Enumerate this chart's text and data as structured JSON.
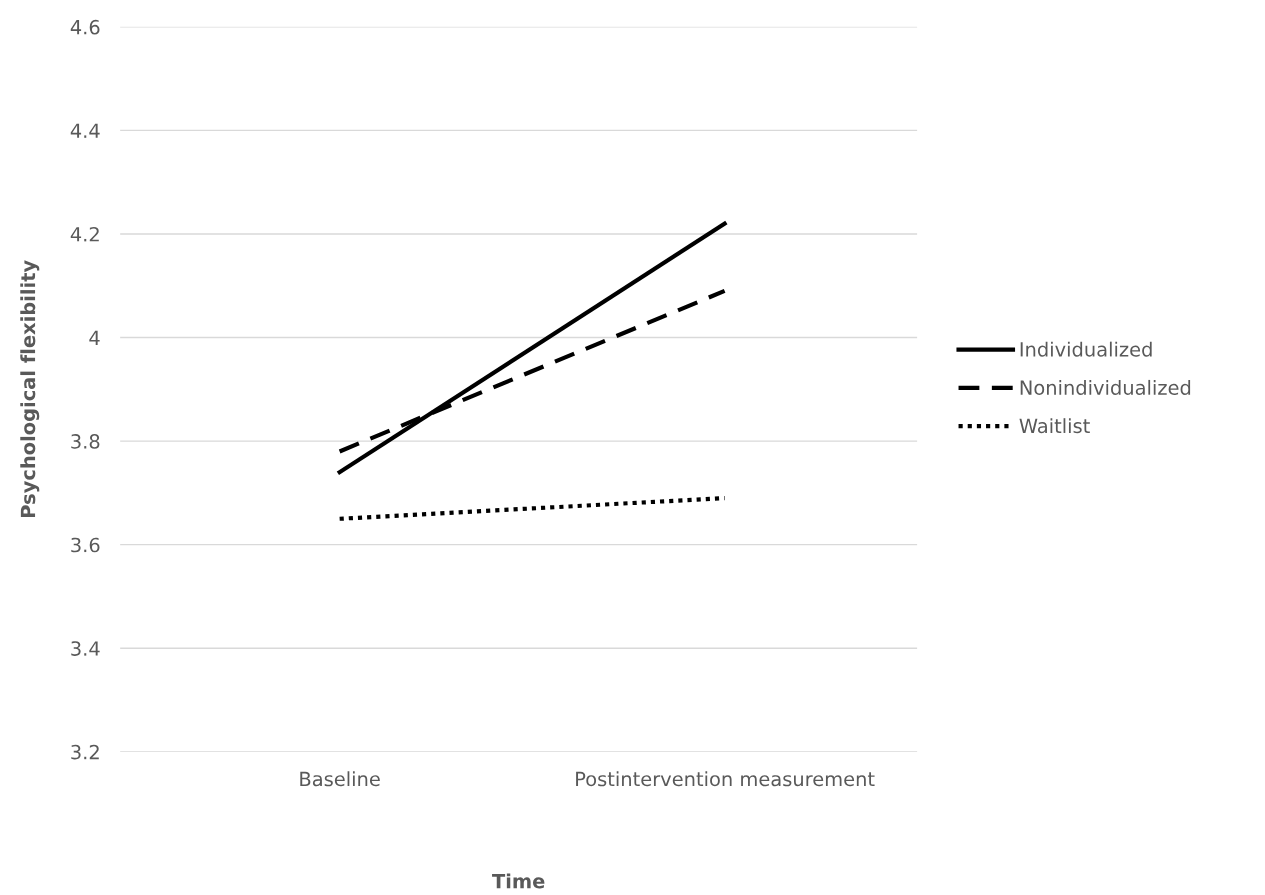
{
  "chart_data": {
    "type": "line",
    "xlabel": "Time",
    "ylabel": "Psychological flexibility",
    "categories": [
      "Baseline",
      "Postintervention measurement"
    ],
    "series": [
      {
        "name": "Individualized",
        "color": "#000000",
        "line_style": "solid",
        "values": [
          3.74,
          4.22
        ]
      },
      {
        "name": "Nonindividualized",
        "color": "#000000",
        "line_style": "dashed",
        "values": [
          3.78,
          4.09
        ]
      },
      {
        "name": "Waitlist",
        "color": "#000000",
        "line_style": "dotted",
        "values": [
          3.65,
          3.69
        ]
      }
    ],
    "ylim": [
      3.2,
      4.6
    ],
    "yticks": [
      3.2,
      3.4,
      3.6,
      3.8,
      4,
      4.2,
      4.4,
      4.6
    ],
    "grid": "y",
    "legend": "right",
    "marker": "none"
  }
}
